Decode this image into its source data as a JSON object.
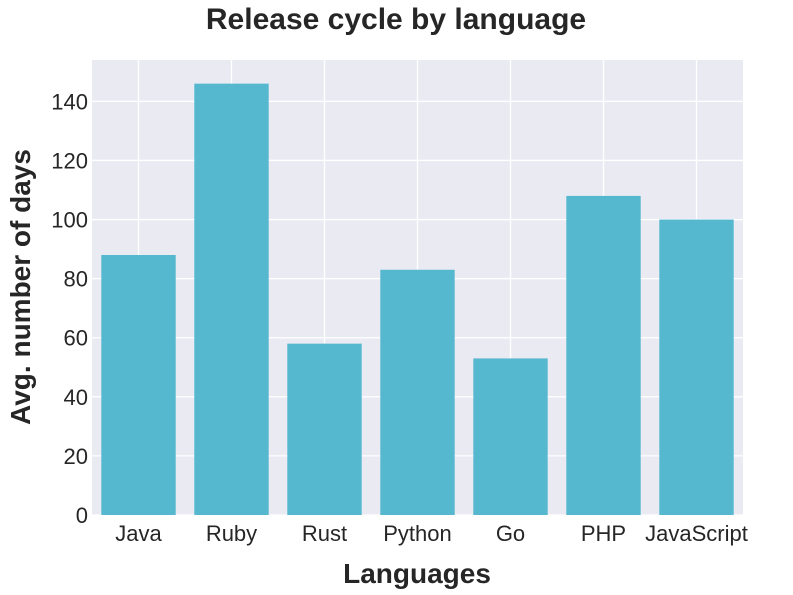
{
  "chart_data": {
    "type": "bar",
    "title": "Release cycle by language",
    "xlabel": "Languages",
    "ylabel": "Avg. number of days",
    "categories": [
      "Java",
      "Ruby",
      "Rust",
      "Python",
      "Go",
      "PHP",
      "JavaScript"
    ],
    "values": [
      88,
      146,
      58,
      83,
      53,
      108,
      100
    ],
    "ylim": [
      0,
      154
    ],
    "yticks": [
      0,
      20,
      40,
      60,
      80,
      100,
      120,
      140
    ],
    "grid": true,
    "colors": {
      "bar": "#56b8cf",
      "plot_background": "#eaeaf2",
      "grid": "#ffffff"
    }
  }
}
